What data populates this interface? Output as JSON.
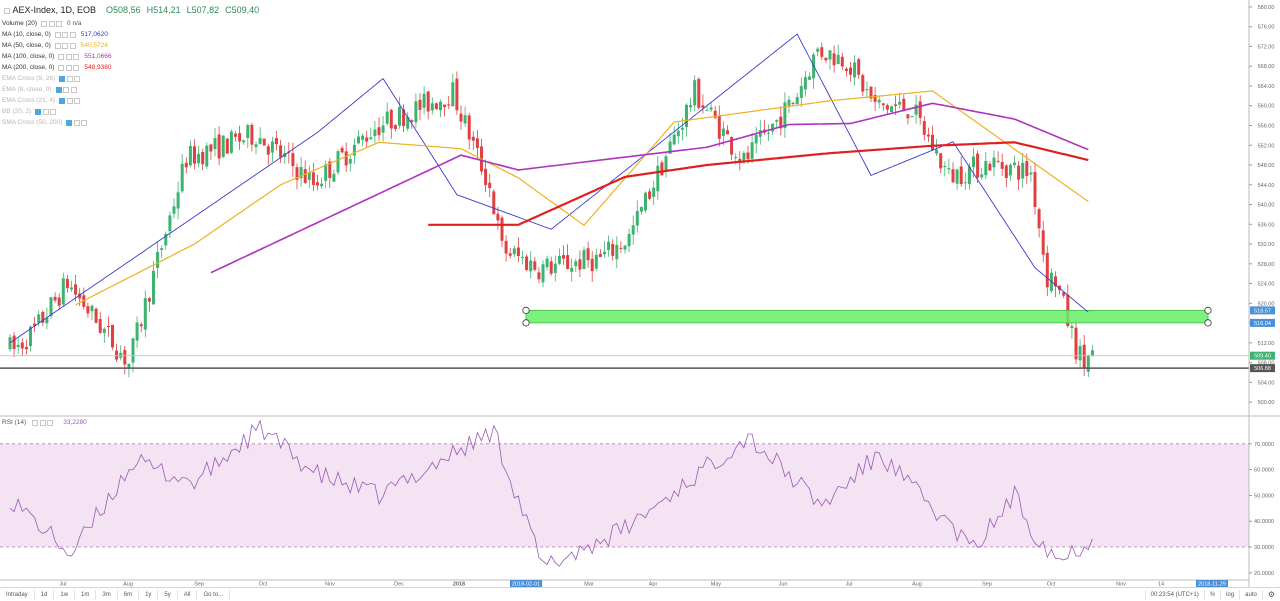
{
  "symbol": {
    "name": "AEX-Index, 1D, EOB",
    "open": "O508,56",
    "high": "H514,21",
    "low": "L507,82",
    "close": "C509,40"
  },
  "indicators": [
    {
      "label": "Volume (20)",
      "value": "0  n/a",
      "color": "#555555",
      "enabled": true
    },
    {
      "label": "MA (10, close, 0)",
      "value": "517,0620",
      "color": "#3a3ad0",
      "enabled": true
    },
    {
      "label": "MA (50, close, 0)",
      "value": "540,5724",
      "color": "#f0b020",
      "enabled": true
    },
    {
      "label": "MA (100, close, 0)",
      "value": "551,0666",
      "color": "#b030c0",
      "enabled": true
    },
    {
      "label": "MA (200, close, 0)",
      "value": "548,9380",
      "color": "#e02020",
      "enabled": true
    },
    {
      "label": "EMA Cross (9, 26)",
      "value": "",
      "color": "#b5b5b5",
      "enabled": false
    },
    {
      "label": "EMA (9, close, 0)",
      "value": "",
      "color": "#b5b5b5",
      "enabled": false
    },
    {
      "label": "EMA Cross (21, 4)",
      "value": "",
      "color": "#b5b5b5",
      "enabled": false
    },
    {
      "label": "BB (20, 2)",
      "value": "",
      "color": "#b5b5b5",
      "enabled": false
    },
    {
      "label": "SMA Cross (50, 200)",
      "value": "",
      "color": "#b5b5b5",
      "enabled": false
    }
  ],
  "rsi_legend": {
    "label": "RSI (14)",
    "value": "33,2280"
  },
  "chart_data": [
    {
      "type": "candlestick",
      "y_ticks": [
        "500.00",
        "504.00",
        "508.00",
        "512.00",
        "516.00",
        "520.00",
        "524.00",
        "528.00",
        "532.00",
        "536.00",
        "540.00",
        "544.00",
        "548.00",
        "552.00",
        "556.00",
        "560.00",
        "564.00",
        "568.00",
        "572.00",
        "576.00",
        "580.00"
      ],
      "ylim": [
        498,
        581
      ],
      "x_ticks": [
        "Jul",
        "Aug",
        "Sep",
        "Oct",
        "Nov",
        "Dec",
        "2018",
        "2018-02-01",
        "Mar",
        "Apr",
        "May",
        "Jun",
        "Jul",
        "Aug",
        "Sep",
        "Oct",
        "Nov",
        "14",
        "2018-11-29"
      ],
      "price_labels": [
        {
          "text": "518.57",
          "value": 518.57,
          "color": "#4a8fd8"
        },
        {
          "text": "516.04",
          "value": 516.04,
          "color": "#4a8fd8"
        },
        {
          "text": "509.40",
          "value": 509.4,
          "color": "#3cb371"
        },
        {
          "text": "506.88",
          "value": 506.88,
          "color": "#555555"
        }
      ],
      "support_zone": [
        516.04,
        518.57
      ],
      "horizontal_line": 506.88,
      "close_line": 509.4,
      "anchors": [
        {
          "x": 218,
          "y_min": 517.6,
          "y_max": 517.6
        },
        {
          "x": 0,
          "y_min": 510.1,
          "y_max": 512.8
        },
        {
          "x": 2,
          "y_min": 509.8,
          "y_max": 511.4
        },
        {
          "x": 7,
          "y_min": 512.8,
          "y_max": 516.2
        },
        {
          "x": 15,
          "y_min": 515.7,
          "y_max": 532.6
        },
        {
          "x": 30,
          "y_min": 503.0,
          "y_max": 512.7
        },
        {
          "x": 44,
          "y_min": 546.5,
          "y_max": 552.2
        },
        {
          "x": 61,
          "y_min": 550.0,
          "y_max": 558.6
        },
        {
          "x": 75,
          "y_min": 540.7,
          "y_max": 547.8
        },
        {
          "x": 90,
          "y_min": 551.6,
          "y_max": 559.7
        },
        {
          "x": 109,
          "y_min": 557.5,
          "y_max": 567.9
        },
        {
          "x": 118,
          "y_min": 541.9,
          "y_max": 545.1
        },
        {
          "x": 121,
          "y_min": 520.1,
          "y_max": 542.1
        },
        {
          "x": 130,
          "y_min": 519.9,
          "y_max": 534.3
        },
        {
          "x": 145,
          "y_min": 524.0,
          "y_max": 534.1
        },
        {
          "x": 152,
          "y_min": 531.7,
          "y_max": 535.0
        },
        {
          "x": 168,
          "y_min": 558.7,
          "y_max": 566.8
        },
        {
          "x": 180,
          "y_min": 546.0,
          "y_max": 551.3
        },
        {
          "x": 192,
          "y_min": 554.8,
          "y_max": 567.1
        },
        {
          "x": 198,
          "y_min": 568.9,
          "y_max": 573.6
        },
        {
          "x": 205,
          "y_min": 565.2,
          "y_max": 573.5
        },
        {
          "x": 212,
          "y_min": 557.5,
          "y_max": 562.4
        },
        {
          "x": 221,
          "y_min": 556.6,
          "y_max": 562.2
        },
        {
          "x": 230,
          "y_min": 540.0,
          "y_max": 551.4
        },
        {
          "x": 240,
          "y_min": 543.2,
          "y_max": 553.9
        },
        {
          "x": 250,
          "y_min": 540.5,
          "y_max": 552.3
        },
        {
          "x": 254,
          "y_min": 519.2,
          "y_max": 531.3
        },
        {
          "x": 256,
          "y_min": 519.2,
          "y_max": 530.4
        },
        {
          "x": 261,
          "y_min": 509.1,
          "y_max": 512.8
        },
        {
          "x": 263,
          "y_min": 507.1,
          "y_max": 508.3
        }
      ],
      "close_point": {
        "x": 264,
        "y": 509.4
      },
      "ma_keyframes": {
        "ma10": [
          [
            0,
            512.0
          ],
          [
            75,
            554.6
          ],
          [
            91,
            565.5
          ],
          [
            109,
            542.0
          ],
          [
            132,
            535.0
          ],
          [
            192,
            574.5
          ],
          [
            210,
            545.9
          ],
          [
            230,
            552.7
          ],
          [
            250,
            527.2
          ],
          [
            263,
            518.2
          ]
        ],
        "ma50": [
          [
            16,
            519.7
          ],
          [
            45,
            532.0
          ],
          [
            66,
            544.0
          ],
          [
            90,
            552.6
          ],
          [
            110,
            551.3
          ],
          [
            124,
            545.4
          ],
          [
            140,
            535.8
          ],
          [
            162,
            556.7
          ],
          [
            200,
            561.0
          ],
          [
            225,
            563.0
          ],
          [
            263,
            540.6
          ]
        ],
        "ma100": [
          [
            49,
            526.2
          ],
          [
            110,
            550.0
          ],
          [
            124,
            547.0
          ],
          [
            170,
            551.6
          ],
          [
            190,
            556.2
          ],
          [
            205,
            556.4
          ],
          [
            225,
            560.5
          ],
          [
            245,
            557.3
          ],
          [
            263,
            551.1
          ]
        ],
        "ma200": [
          [
            102,
            535.9
          ],
          [
            124,
            535.9
          ],
          [
            150,
            545.6
          ],
          [
            170,
            548.0
          ],
          [
            200,
            550.4
          ],
          [
            225,
            551.9
          ],
          [
            245,
            552.6
          ],
          [
            263,
            549.0
          ]
        ]
      }
    },
    {
      "type": "line",
      "name": "RSI (14)",
      "y_ticks": [
        "20.0000",
        "30.0000",
        "40.0000",
        "50.0000",
        "60.0000",
        "70.0000"
      ],
      "ylim": [
        18,
        80
      ],
      "bands": [
        30,
        70
      ],
      "keyframes": [
        [
          0,
          49.0
        ],
        [
          15,
          27.0
        ],
        [
          30,
          63.0
        ],
        [
          45,
          55.0
        ],
        [
          61,
          76.0
        ],
        [
          75,
          58.0
        ],
        [
          90,
          50.0
        ],
        [
          118,
          75.0
        ],
        [
          130,
          22.0
        ],
        [
          150,
          37.0
        ],
        [
          180,
          73.0
        ],
        [
          198,
          46.0
        ],
        [
          212,
          66.0
        ],
        [
          235,
          29.0
        ],
        [
          245,
          50.0
        ],
        [
          250,
          35.0
        ],
        [
          256,
          25.0
        ],
        [
          264,
          33.2
        ]
      ]
    }
  ],
  "bottom_bar": {
    "timeframes": [
      "Intraday",
      "1d",
      "1w",
      "1m",
      "3m",
      "6m",
      "1y",
      "5y",
      "All",
      "Go to..."
    ],
    "clock": "00:23:54 (UTC+1)",
    "percent": "%",
    "log": "log",
    "auto": "auto",
    "gear": "⚙"
  },
  "colors": {
    "up": "#3cb371",
    "down": "#e04040",
    "zone_fill": "#66ee66",
    "zone_stroke": "#44bb44",
    "ma10": "#3a3ad0",
    "ma50": "#f0b020",
    "ma100": "#b030c0",
    "ma200": "#e02020",
    "rsi_line": "#9b59b6",
    "rsi_band": "#f3e3f3",
    "axis_text": "#666666",
    "grid": "#cccccc"
  }
}
